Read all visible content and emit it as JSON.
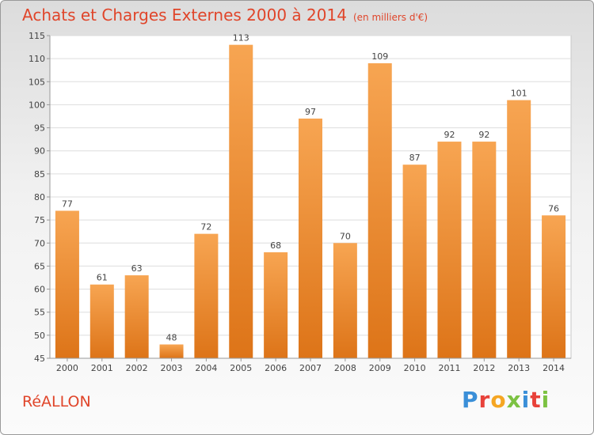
{
  "header": {
    "title": "Achats et Charges Externes 2000 à 2014",
    "subtitle": "(en milliers d'€)"
  },
  "footer": {
    "commune": "RéALLON",
    "brand": "Proxiti"
  },
  "colors": {
    "title": "#e0452a",
    "bar_light": "#f7a552",
    "bar_dark": "#dd7418",
    "brand_letters": [
      "#3a8fd8",
      "#e8423a",
      "#f5a623",
      "#7cc242",
      "#3a8fd8",
      "#e8423a",
      "#7cc242"
    ]
  },
  "chart_data": {
    "type": "bar",
    "title": "Achats et Charges Externes 2000 à 2014",
    "subtitle": "(en milliers d'€)",
    "categories": [
      "2000",
      "2001",
      "2002",
      "2003",
      "2004",
      "2005",
      "2006",
      "2007",
      "2008",
      "2009",
      "2010",
      "2011",
      "2012",
      "2013",
      "2014"
    ],
    "values": [
      77,
      61,
      63,
      48,
      72,
      113,
      68,
      97,
      70,
      109,
      87,
      92,
      92,
      101,
      76
    ],
    "ylim": [
      45,
      115
    ],
    "yticks": [
      45,
      50,
      55,
      60,
      65,
      70,
      75,
      80,
      85,
      90,
      95,
      100,
      105,
      110,
      115
    ],
    "grid": true,
    "data_labels": true
  }
}
